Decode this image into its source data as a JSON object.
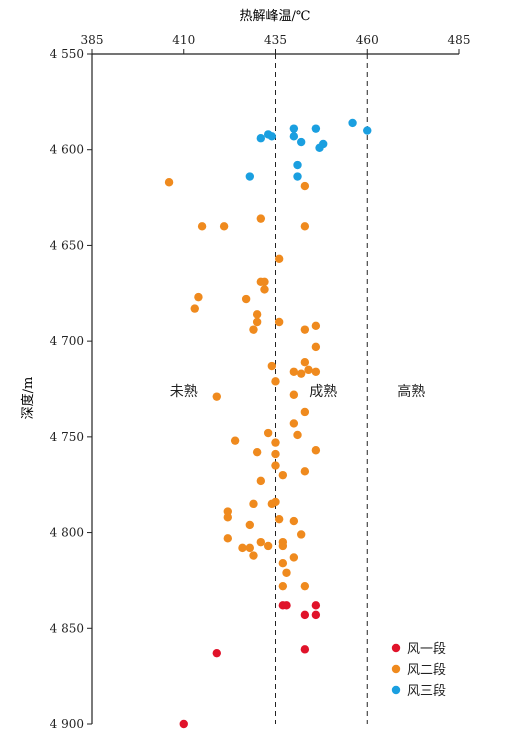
{
  "chart_data": {
    "type": "scatter",
    "xlabel": "热解峰温/℃",
    "ylabel": "深度/m",
    "xlim": [
      385,
      485
    ],
    "ylim": [
      4550,
      4900
    ],
    "x_axis_position": "top",
    "y_inverted": true,
    "grid": false,
    "x_ticks": [
      385,
      410,
      435,
      460,
      485
    ],
    "x_tick_labels": [
      "385",
      "410",
      "435",
      "460",
      "485"
    ],
    "y_ticks": [
      4550,
      4600,
      4650,
      4700,
      4750,
      4800,
      4850,
      4900
    ],
    "y_tick_labels": [
      "4 550",
      "4 600",
      "4 650",
      "4 700",
      "4 750",
      "4 800",
      "4 850",
      "4 900"
    ],
    "reference_lines": [
      435,
      460
    ],
    "zone_labels": [
      {
        "text": "未熟",
        "x": 410,
        "y": 4726
      },
      {
        "text": "成熟",
        "x": 448,
        "y": 4726
      },
      {
        "text": "高熟",
        "x": 472,
        "y": 4726
      }
    ],
    "legend_position": "bottom-right",
    "series": [
      {
        "name": "风一段",
        "color": "#e0132a",
        "points": [
          [
            437,
            4838
          ],
          [
            438,
            4838
          ],
          [
            446,
            4838
          ],
          [
            443,
            4843
          ],
          [
            446,
            4843
          ],
          [
            419,
            4863
          ],
          [
            443,
            4861
          ],
          [
            410,
            4900
          ]
        ]
      },
      {
        "name": "风二段",
        "color": "#ef8a1e",
        "points": [
          [
            406,
            4617
          ],
          [
            443,
            4619
          ],
          [
            431,
            4636
          ],
          [
            415,
            4640
          ],
          [
            421,
            4640
          ],
          [
            443,
            4640
          ],
          [
            436,
            4657
          ],
          [
            431,
            4669
          ],
          [
            432,
            4669
          ],
          [
            432,
            4673
          ],
          [
            414,
            4677
          ],
          [
            427,
            4678
          ],
          [
            413,
            4683
          ],
          [
            430,
            4686
          ],
          [
            430,
            4690
          ],
          [
            436,
            4690
          ],
          [
            446,
            4692
          ],
          [
            429,
            4694
          ],
          [
            443,
            4694
          ],
          [
            446,
            4703
          ],
          [
            434,
            4713
          ],
          [
            443,
            4711
          ],
          [
            444,
            4715
          ],
          [
            446,
            4716
          ],
          [
            440,
            4716
          ],
          [
            442,
            4717
          ],
          [
            435,
            4721
          ],
          [
            419,
            4729
          ],
          [
            440,
            4728
          ],
          [
            443,
            4737
          ],
          [
            440,
            4743
          ],
          [
            433,
            4748
          ],
          [
            441,
            4749
          ],
          [
            424,
            4752
          ],
          [
            435,
            4753
          ],
          [
            446,
            4757
          ],
          [
            430,
            4758
          ],
          [
            435,
            4759
          ],
          [
            435,
            4765
          ],
          [
            443,
            4768
          ],
          [
            437,
            4770
          ],
          [
            431,
            4773
          ],
          [
            435,
            4784
          ],
          [
            434,
            4785
          ],
          [
            429,
            4785
          ],
          [
            422,
            4789
          ],
          [
            422,
            4792
          ],
          [
            436,
            4793
          ],
          [
            440,
            4794
          ],
          [
            428,
            4796
          ],
          [
            442,
            4801
          ],
          [
            422,
            4803
          ],
          [
            431,
            4805
          ],
          [
            437,
            4805
          ],
          [
            437,
            4807
          ],
          [
            433,
            4807
          ],
          [
            428,
            4808
          ],
          [
            426,
            4808
          ],
          [
            429,
            4812
          ],
          [
            440,
            4813
          ],
          [
            437,
            4816
          ],
          [
            438,
            4821
          ],
          [
            437,
            4828
          ],
          [
            443,
            4828
          ]
        ]
      },
      {
        "name": "风三段",
        "color": "#1a9fe0",
        "points": [
          [
            456,
            4586
          ],
          [
            440,
            4589
          ],
          [
            446,
            4589
          ],
          [
            460,
            4590
          ],
          [
            433,
            4592
          ],
          [
            434,
            4593
          ],
          [
            440,
            4593
          ],
          [
            431,
            4594
          ],
          [
            442,
            4596
          ],
          [
            448,
            4597
          ],
          [
            447,
            4599
          ],
          [
            441,
            4608
          ],
          [
            428,
            4614
          ],
          [
            441,
            4614
          ]
        ]
      }
    ]
  }
}
